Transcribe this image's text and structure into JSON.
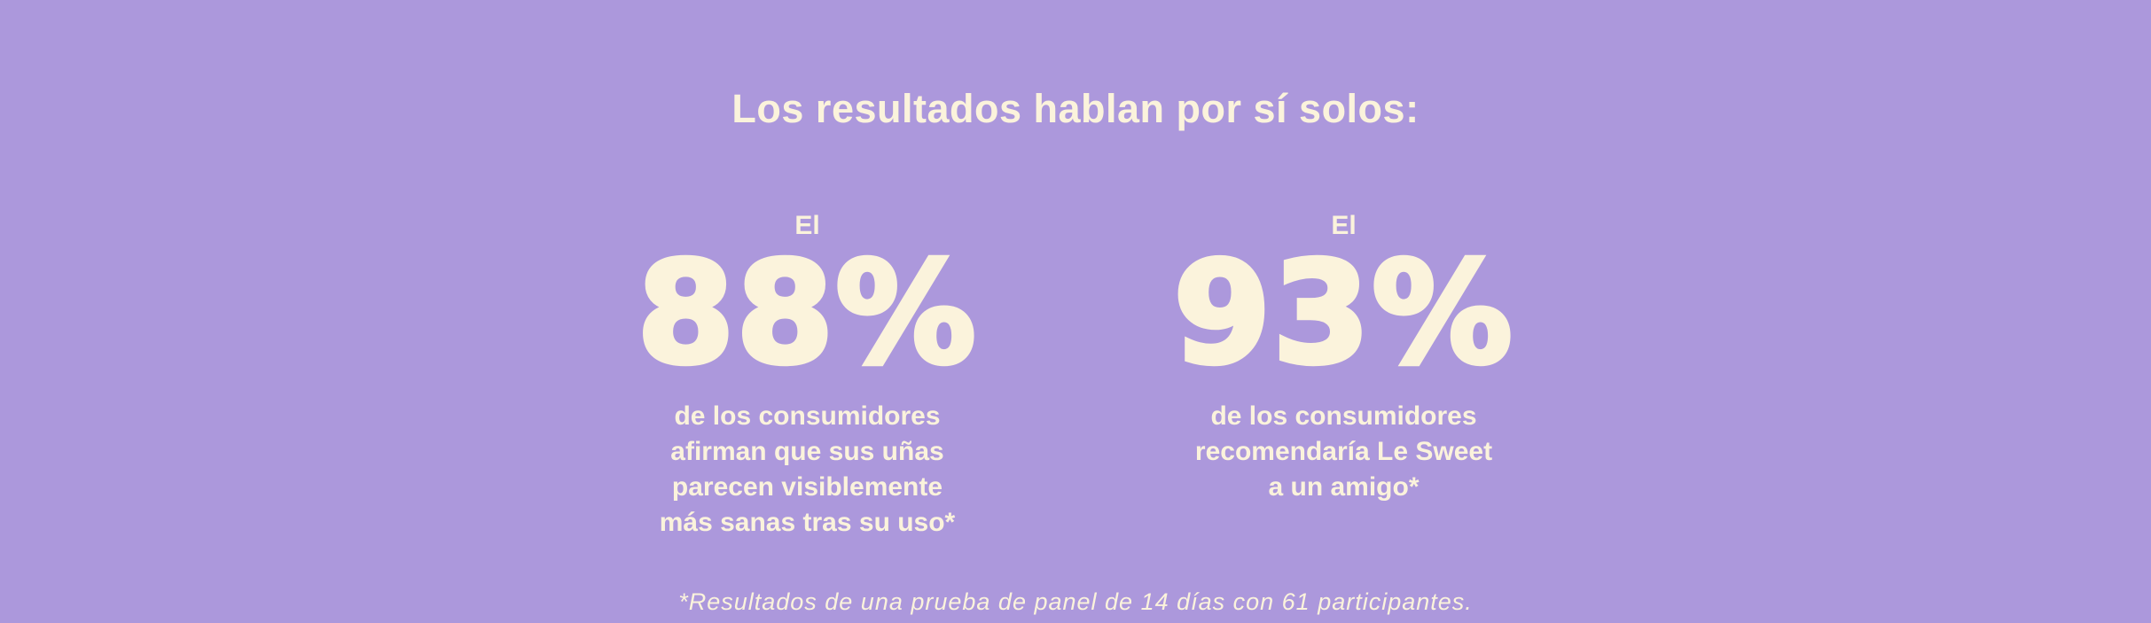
{
  "colors": {
    "background": "#AC98DC",
    "text": "#FBF3DC"
  },
  "title": "Los resultados hablan por sí solos:",
  "stats": [
    {
      "prefix": "El",
      "value": "88%",
      "description": "de los consumidores afirman que sus uñas parecen visiblemente más sanas tras su uso*",
      "description_lines": [
        "de los consumidores",
        "afirman que sus uñas",
        "parecen visiblemente",
        "más sanas tras su uso*"
      ]
    },
    {
      "prefix": "El",
      "value": "93%",
      "description": "de los consumidores recomendaría Le Sweet a un amigo*",
      "description_lines": [
        "de los consumidores",
        "recomendaría Le Sweet",
        "a un amigo*"
      ]
    }
  ],
  "footnote": "*Resultados de una prueba de panel de 14 días con 61 participantes."
}
